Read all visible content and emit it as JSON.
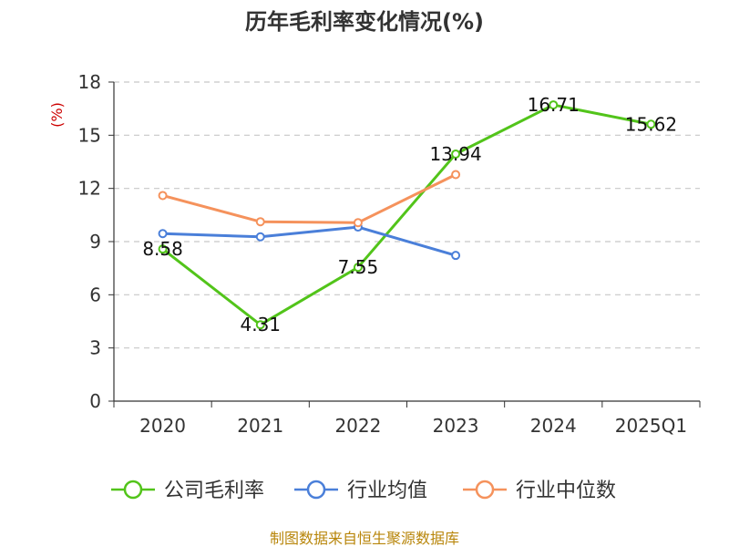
{
  "title": "历年毛利率变化情况(%)",
  "source": "制图数据来自恒生聚源数据库",
  "chart_data": {
    "type": "line",
    "title": "历年毛利率变化情况(%)",
    "ylabel": "(%)",
    "xlabel": "",
    "categories": [
      "2020",
      "2021",
      "2022",
      "2023",
      "2024",
      "2025Q1"
    ],
    "ylim": [
      0,
      18
    ],
    "yticks": [
      0,
      3,
      6,
      9,
      12,
      15,
      18
    ],
    "grid": "horizontal-dashed",
    "legend_position": "bottom",
    "series": [
      {
        "name": "公司毛利率",
        "color": "#52c41a",
        "values": [
          8.58,
          4.31,
          7.55,
          13.94,
          16.71,
          15.62
        ],
        "labels": [
          "8.58",
          "4.31",
          "7.55",
          "13.94",
          "16.71",
          "15.62"
        ]
      },
      {
        "name": "行业均值",
        "color": "#4a7fd9",
        "values": [
          9.45,
          9.27,
          9.82,
          8.22,
          null,
          null
        ]
      },
      {
        "name": "行业中位数",
        "color": "#f5925c",
        "values": [
          11.6,
          10.12,
          10.07,
          12.78,
          null,
          null
        ]
      }
    ]
  }
}
